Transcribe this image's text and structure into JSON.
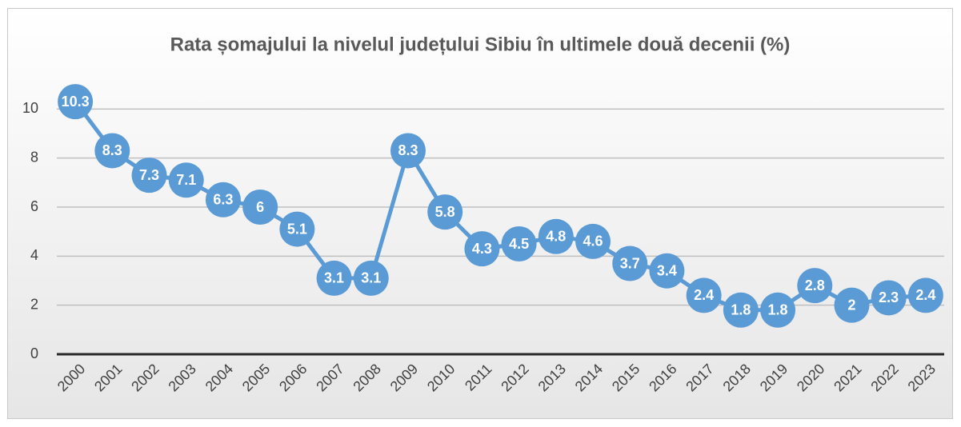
{
  "chart_data": {
    "type": "line",
    "title": "Rata șomajului la nivelul județului Sibiu în ultimele două decenii (%)",
    "categories": [
      "2000",
      "2001",
      "2002",
      "2003",
      "2004",
      "2005",
      "2006",
      "2007",
      "2008",
      "2009",
      "2010",
      "2011",
      "2012",
      "2013",
      "2014",
      "2015",
      "2016",
      "2017",
      "2018",
      "2019",
      "2020",
      "2021",
      "2022",
      "2023"
    ],
    "values": [
      10.3,
      8.3,
      7.3,
      7.1,
      6.3,
      6,
      5.1,
      3.1,
      3.1,
      8.3,
      5.8,
      4.3,
      4.5,
      4.8,
      4.6,
      3.7,
      3.4,
      2.4,
      1.8,
      1.8,
      2.8,
      2,
      2.3,
      2.4
    ],
    "color": "#5b9bd5",
    "ylim": [
      0,
      12
    ],
    "yticks": [
      0,
      2,
      4,
      6,
      8,
      10
    ],
    "grid": true
  }
}
